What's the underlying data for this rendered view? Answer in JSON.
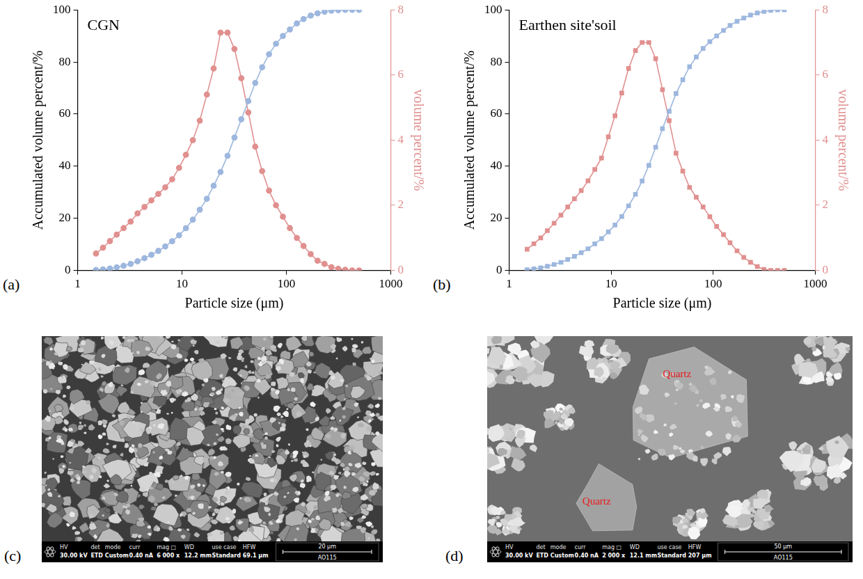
{
  "chart_data": [
    {
      "type": "line",
      "title": "CGN",
      "panel_label": "(a)",
      "x_label": "Particle size (μm)",
      "y_label": "Accumulated volume percent/%",
      "y2_label": "volume percent/%",
      "log": "x",
      "grid": false,
      "x": [
        1.5,
        1.75,
        2.04,
        2.37,
        2.76,
        3.22,
        3.75,
        4.37,
        5.09,
        5.93,
        6.91,
        8.05,
        9.38,
        10.9,
        12.7,
        14.8,
        17.3,
        20.1,
        23.4,
        27.3,
        31.8,
        37.0,
        43.2,
        50.3,
        58.6,
        68.2,
        79.5,
        92.6,
        108,
        126,
        146,
        171,
        199,
        232,
        270,
        314,
        366,
        427,
        497
      ],
      "xlim": [
        1,
        1000
      ],
      "xticks": [
        1,
        10,
        100,
        1000
      ],
      "ylim": [
        0,
        100
      ],
      "yticks": [
        0,
        20,
        40,
        60,
        80,
        100
      ],
      "y2lim": [
        0,
        8
      ],
      "y2ticks": [
        0,
        2,
        4,
        6,
        8
      ],
      "series": [
        {
          "color": "#9db7de",
          "marker": "circle",
          "line_style": "solid",
          "values": [
            0.2,
            0.4,
            0.7,
            1.2,
            1.8,
            2.5,
            3.5,
            4.7,
            6,
            7.5,
            9.2,
            11.2,
            13.5,
            16.2,
            19.5,
            23.3,
            27.5,
            32.5,
            37.8,
            44,
            51,
            58,
            65,
            72,
            78,
            83,
            87,
            90,
            92.5,
            94.8,
            96.5,
            97.8,
            98.7,
            99.3,
            99.7,
            99.9,
            100,
            100,
            100
          ]
        },
        {
          "color": "#e0908f",
          "marker": "circle",
          "line_style": "solid",
          "axis": "y2",
          "values": [
            0.52,
            0.7,
            0.9,
            1.1,
            1.3,
            1.5,
            1.75,
            1.95,
            2.15,
            2.35,
            2.55,
            2.8,
            3.15,
            3.55,
            4.0,
            4.6,
            5.4,
            6.2,
            7.3,
            7.3,
            6.8,
            5.9,
            4.85,
            3.8,
            3.05,
            2.45,
            2.0,
            1.65,
            1.3,
            1.0,
            0.75,
            0.5,
            0.3,
            0.2,
            0.1,
            0.05,
            0.02,
            0,
            0
          ]
        }
      ]
    },
    {
      "type": "line",
      "title": "Earthen site'soil",
      "panel_label": "(b)",
      "x_label": "Particle size (μm)",
      "y_label": "Accumulated volume percent/%",
      "y2_label": "volume percent/%",
      "log": "x",
      "grid": false,
      "x": [
        1.5,
        1.75,
        2.04,
        2.37,
        2.76,
        3.22,
        3.75,
        4.37,
        5.09,
        5.93,
        6.91,
        8.05,
        9.38,
        10.9,
        12.7,
        14.8,
        17.3,
        20.1,
        23.4,
        27.3,
        31.8,
        37.0,
        43.2,
        50.3,
        58.6,
        68.2,
        79.5,
        92.6,
        108,
        126,
        146,
        171,
        199,
        232,
        270,
        314,
        366,
        427,
        497
      ],
      "xlim": [
        1,
        1000
      ],
      "xticks": [
        1,
        10,
        100,
        1000
      ],
      "ylim": [
        0,
        100
      ],
      "yticks": [
        0,
        20,
        40,
        60,
        80,
        100
      ],
      "y2lim": [
        0,
        8
      ],
      "y2ticks": [
        0,
        2,
        4,
        6,
        8
      ],
      "series": [
        {
          "color": "#9db7de",
          "marker": "square",
          "line_style": "solid",
          "values": [
            0.3,
            0.6,
            1.0,
            1.6,
            2.3,
            3.1,
            4.2,
            5.4,
            6.8,
            8.3,
            10.2,
            12.2,
            14.8,
            17.4,
            20.7,
            24.8,
            29.2,
            34.3,
            40.3,
            47.3,
            54.4,
            61.1,
            67.9,
            73.2,
            78.2,
            81.9,
            85.2,
            87.8,
            90.0,
            92.1,
            94.0,
            95.6,
            96.9,
            98.0,
            98.8,
            99.4,
            99.8,
            100,
            100
          ]
        },
        {
          "color": "#e0908f",
          "marker": "square",
          "line_style": "solid",
          "axis": "y2",
          "values": [
            0.65,
            0.82,
            1.0,
            1.22,
            1.45,
            1.7,
            1.95,
            2.2,
            2.45,
            2.75,
            3.1,
            3.45,
            4.1,
            4.75,
            5.45,
            6.2,
            6.75,
            7.0,
            7.0,
            6.5,
            5.55,
            4.6,
            3.6,
            3.05,
            2.55,
            2.25,
            1.95,
            1.65,
            1.35,
            1.1,
            0.85,
            0.6,
            0.4,
            0.25,
            0.12,
            0.03,
            0,
            0,
            0
          ]
        }
      ]
    }
  ],
  "images": [
    {
      "panel_label": "(c)",
      "info_labels": [
        "HV",
        "det",
        "mode",
        "curr",
        "mag □",
        "WD",
        "use case",
        "HFW"
      ],
      "info_values": [
        "30.00 kV",
        "ETD",
        "Custom",
        "0.40 nA",
        "6 000 x",
        "12.2 mm",
        "Standard",
        "69.1 µm"
      ],
      "scale_bar": "20 µm",
      "instrument_id": "AO115"
    },
    {
      "panel_label": "(d)",
      "info_labels": [
        "HV",
        "det",
        "mode",
        "curr",
        "mag □",
        "WD",
        "use case",
        "HFW"
      ],
      "info_values": [
        "30.00 kV",
        "ETD",
        "Custom",
        "0.40 nA",
        "2 000 x",
        "12.1 mm",
        "Standard",
        "207 µm"
      ],
      "scale_bar": "50 µm",
      "instrument_id": "AO115",
      "annotations": [
        "Quartz",
        "Quartz"
      ]
    }
  ]
}
